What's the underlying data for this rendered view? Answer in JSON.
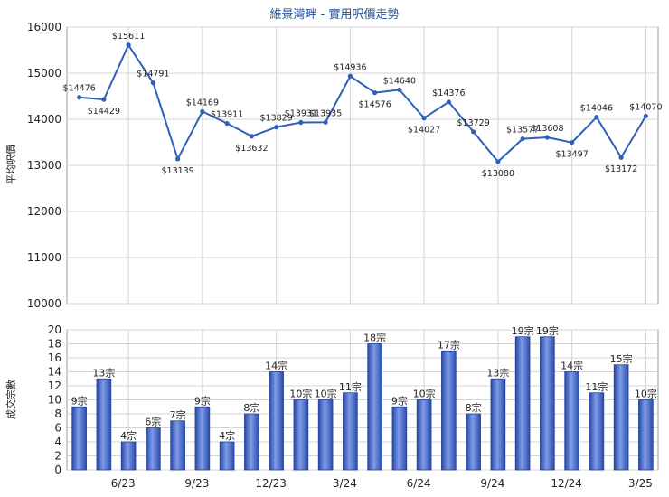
{
  "title": "維景灣畔 - 實用呎價走勢",
  "chart_data": [
    {
      "type": "line",
      "ylabel": "平均呎價",
      "ylim": [
        10000,
        16000
      ],
      "yticks": [
        10000,
        11000,
        12000,
        13000,
        14000,
        15000,
        16000
      ],
      "grid": true,
      "color": "#2e5fb8",
      "series": [
        {
          "values": [
            14476,
            14429,
            15611,
            14791,
            13139,
            14169,
            13911,
            13632,
            13829,
            13931,
            13935,
            14936,
            14576,
            14640,
            14027,
            14376,
            13729,
            13080,
            13577,
            13608,
            13497,
            14046,
            13172,
            14070
          ],
          "labels": [
            "$14476",
            "$14429",
            "$15611",
            "$14791",
            "$13139",
            "$14169",
            "$13911",
            "$13632",
            "$13829",
            "$13931",
            "$13935",
            "$14936",
            "$14576",
            "$14640",
            "$14027",
            "$14376",
            "$13729",
            "$13080",
            "$13577",
            "$13608",
            "$13497",
            "$14046",
            "$13172",
            "$14070"
          ]
        }
      ]
    },
    {
      "type": "bar",
      "ylabel": "成交宗數",
      "ylim": [
        0,
        20
      ],
      "yticks": [
        0,
        2,
        4,
        6,
        8,
        10,
        12,
        14,
        16,
        18,
        20
      ],
      "grid": true,
      "color": "#3f63c4",
      "x_tick_labels": [
        "6/23",
        "9/23",
        "12/23",
        "3/24",
        "6/24",
        "9/24",
        "12/24",
        "3/25"
      ],
      "values": [
        9,
        13,
        4,
        6,
        7,
        9,
        4,
        8,
        14,
        10,
        10,
        11,
        18,
        9,
        10,
        17,
        8,
        13,
        19,
        19,
        14,
        11,
        15,
        10
      ],
      "labels": [
        "9宗",
        "13宗",
        "4宗",
        "6宗",
        "7宗",
        "9宗",
        "4宗",
        "8宗",
        "14宗",
        "10宗",
        "10宗",
        "11宗",
        "18宗",
        "9宗",
        "10宗",
        "17宗",
        "8宗",
        "13宗",
        "19宗",
        "19宗",
        "14宗",
        "11宗",
        "15宗",
        "10宗"
      ]
    }
  ]
}
